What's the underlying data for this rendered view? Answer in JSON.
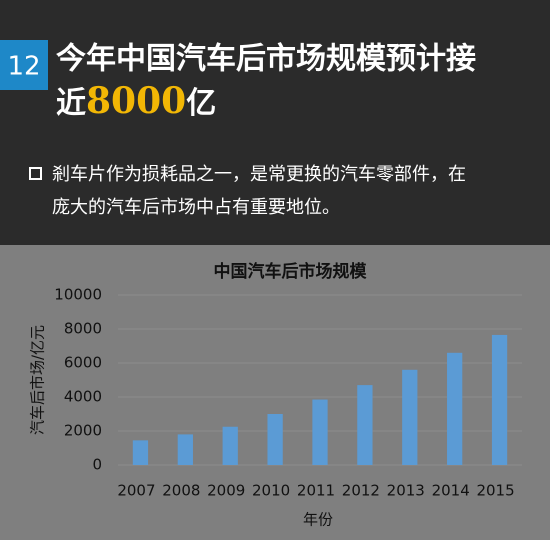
{
  "header": {
    "number": "12",
    "title_line1": "今年中国汽车后市场规模预计接",
    "title_line2_prefix": "近",
    "title_highlight": "8000",
    "title_line2_suffix": "亿"
  },
  "bullet": {
    "line1": "剎车片作为损耗品之一，是常更换的汽车零部件，在",
    "line2": "庞大的汽车后市场中占有重要地位。"
  },
  "chart_data": {
    "type": "bar",
    "title": "中国汽车后市场规模",
    "y_label": "汽车后市场/亿元",
    "x_label": "年份",
    "categories": [
      "2007",
      "2008",
      "2009",
      "2010",
      "2011",
      "2012",
      "2013",
      "2014",
      "2015"
    ],
    "values": [
      1450,
      1800,
      2250,
      3000,
      3850,
      4700,
      5600,
      6600,
      7650
    ],
    "color": "#5b9bd5",
    "ylim": [
      0,
      10000
    ],
    "yticks": [
      0,
      2000,
      4000,
      6000,
      8000,
      10000
    ],
    "grid": true
  }
}
